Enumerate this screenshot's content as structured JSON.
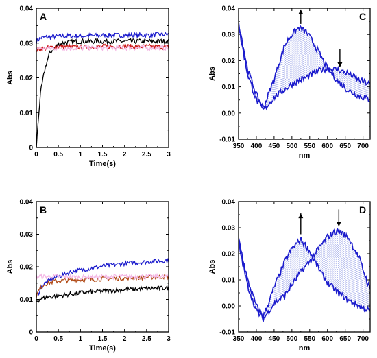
{
  "chart_data": [
    {
      "panel": "A",
      "type": "line",
      "xlabel": "Time(s)",
      "ylabel": "Abs",
      "xlim": [
        0,
        3
      ],
      "ylim": [
        0,
        0.04
      ],
      "xticks": [
        "0",
        "0.5",
        "1",
        "1.5",
        "2",
        "2.5",
        "3"
      ],
      "yticks": [
        "0",
        "0.01",
        "0.02",
        "0.03",
        "0.04"
      ],
      "series": [
        {
          "color": "#1a1acc",
          "x": [
            0,
            0.05,
            0.1,
            0.3,
            0.6,
            1,
            1.5,
            2,
            2.5,
            3
          ],
          "y": [
            0.0305,
            0.031,
            0.0315,
            0.0318,
            0.032,
            0.032,
            0.0322,
            0.0322,
            0.0323,
            0.0325
          ]
        },
        {
          "color": "#000000",
          "x": [
            0,
            0.05,
            0.1,
            0.2,
            0.3,
            0.4,
            0.5,
            0.6,
            0.8,
            1,
            1.5,
            2,
            2.5,
            3
          ],
          "y": [
            0.0,
            0.009,
            0.016,
            0.023,
            0.027,
            0.0285,
            0.0295,
            0.03,
            0.0303,
            0.0305,
            0.0305,
            0.0305,
            0.0305,
            0.0305
          ]
        },
        {
          "color": "#cc1a1a",
          "x": [
            0,
            0.2,
            0.5,
            1,
            1.5,
            2,
            2.5,
            3
          ],
          "y": [
            0.028,
            0.0285,
            0.029,
            0.0288,
            0.029,
            0.029,
            0.029,
            0.0288
          ]
        },
        {
          "color": "#f4b6e4",
          "x": [
            0,
            0.5,
            1,
            1.5,
            2,
            2.5,
            3
          ],
          "y": [
            0.0285,
            0.0285,
            0.0286,
            0.0286,
            0.0286,
            0.0286,
            0.0286
          ]
        }
      ]
    },
    {
      "panel": "B",
      "type": "line",
      "xlabel": "Time(s)",
      "ylabel": "Abs",
      "xlim": [
        0,
        3
      ],
      "ylim": [
        0,
        0.04
      ],
      "xticks": [
        "0",
        "0.5",
        "1",
        "1.5",
        "2",
        "2.5",
        "3"
      ],
      "yticks": [
        "0",
        "0.01",
        "0.02",
        "0.03",
        "0.04"
      ],
      "series": [
        {
          "color": "#1a1acc",
          "x": [
            0,
            0.05,
            0.1,
            0.2,
            0.4,
            0.6,
            0.8,
            1,
            1.5,
            2,
            2.5,
            3
          ],
          "y": [
            0.011,
            0.012,
            0.0135,
            0.015,
            0.0165,
            0.0175,
            0.0185,
            0.019,
            0.0202,
            0.021,
            0.0215,
            0.022
          ]
        },
        {
          "color": "#b04a16",
          "x": [
            0,
            0.05,
            0.1,
            0.2,
            0.4,
            0.6,
            1,
            1.5,
            2,
            2.5,
            3
          ],
          "y": [
            0.011,
            0.0125,
            0.0138,
            0.0148,
            0.0155,
            0.0158,
            0.016,
            0.0163,
            0.0165,
            0.0168,
            0.017
          ]
        },
        {
          "color": "#f4b6e4",
          "x": [
            0,
            0.5,
            1,
            1.5,
            2,
            2.5,
            3
          ],
          "y": [
            0.017,
            0.017,
            0.0168,
            0.017,
            0.017,
            0.017,
            0.017
          ]
        },
        {
          "color": "#000000",
          "x": [
            0,
            0.05,
            0.1,
            0.3,
            0.6,
            1,
            1.5,
            2,
            2.5,
            3
          ],
          "y": [
            0.0095,
            0.0098,
            0.0102,
            0.0108,
            0.0113,
            0.012,
            0.0125,
            0.013,
            0.0133,
            0.0135
          ]
        }
      ]
    },
    {
      "panel": "C",
      "type": "line",
      "xlabel": "nm",
      "ylabel": "Abs",
      "xlim": [
        350,
        720
      ],
      "ylim": [
        -0.01,
        0.04
      ],
      "xticks": [
        "350",
        "400",
        "450",
        "500",
        "550",
        "600",
        "650",
        "700"
      ],
      "yticks": [
        "-0.01",
        "0.00",
        "0.01",
        "0.02",
        "0.03",
        "0.04"
      ],
      "arrows": [
        {
          "x": 525,
          "dir": "up"
        },
        {
          "x": 635,
          "dir": "down"
        }
      ],
      "series": [
        {
          "color": "#1a1acc",
          "x": [
            350,
            375,
            400,
            420,
            450,
            480,
            500,
            520,
            540,
            560,
            580,
            600,
            630,
            660,
            690,
            720
          ],
          "y": [
            0.035,
            0.017,
            0.007,
            0.002,
            0.013,
            0.026,
            0.03,
            0.0325,
            0.031,
            0.027,
            0.022,
            0.017,
            0.012,
            0.0085,
            0.0065,
            0.005
          ]
        },
        {
          "color": "#1a1acc",
          "x": [
            350,
            375,
            400,
            420,
            450,
            480,
            500,
            520,
            540,
            560,
            580,
            600,
            630,
            660,
            690,
            720
          ],
          "y": [
            0.033,
            0.015,
            0.005,
            0.001,
            0.006,
            0.009,
            0.011,
            0.0125,
            0.0135,
            0.015,
            0.0165,
            0.017,
            0.0165,
            0.015,
            0.0125,
            0.011
          ]
        }
      ]
    },
    {
      "panel": "D",
      "type": "line",
      "xlabel": "nm",
      "ylabel": "Abs",
      "xlim": [
        350,
        720
      ],
      "ylim": [
        -0.01,
        0.04
      ],
      "xticks": [
        "350",
        "400",
        "450",
        "500",
        "550",
        "600",
        "650",
        "700"
      ],
      "yticks": [
        "-0.01",
        "0.00",
        "0.01",
        "0.02",
        "0.03",
        "0.04"
      ],
      "arrows": [
        {
          "x": 525,
          "dir": "up"
        },
        {
          "x": 632,
          "dir": "down"
        }
      ],
      "series": [
        {
          "color": "#1a1acc",
          "x": [
            350,
            375,
            400,
            420,
            450,
            480,
            500,
            525,
            545,
            565,
            585,
            600,
            630,
            660,
            690,
            720
          ],
          "y": [
            0.026,
            0.01,
            0.0,
            -0.004,
            0.007,
            0.017,
            0.022,
            0.0255,
            0.022,
            0.017,
            0.012,
            0.009,
            0.005,
            0.002,
            0.0,
            -0.002
          ]
        },
        {
          "color": "#1a1acc",
          "x": [
            350,
            375,
            400,
            420,
            450,
            480,
            500,
            525,
            550,
            575,
            600,
            630,
            660,
            690,
            720
          ],
          "y": [
            0.024,
            0.008,
            -0.002,
            -0.005,
            0.001,
            0.004,
            0.008,
            0.013,
            0.017,
            0.022,
            0.0265,
            0.029,
            0.026,
            0.018,
            0.006
          ]
        }
      ]
    }
  ]
}
